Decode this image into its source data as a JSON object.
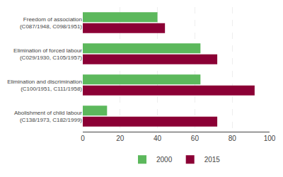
{
  "chart_data": {
    "type": "bar",
    "orientation": "horizontal",
    "categories": [
      "Freedom of association\n(C087/1948, C098/1951)",
      "Elimination of forced labour\n(C029/1930, C105/1957)",
      "Elimination and discrimination\n(C100/1951, C111/1958)",
      "Abolishment of child labour\n(C138/1973, C182/1999)"
    ],
    "series": [
      {
        "name": "2000",
        "color": "#5cb85c",
        "values": [
          40,
          63,
          63,
          13
        ]
      },
      {
        "name": "2015",
        "color": "#8b0035",
        "values": [
          44,
          72,
          92,
          72
        ]
      }
    ],
    "xlim": [
      0,
      100
    ],
    "xticks": [
      0,
      20,
      40,
      60,
      80,
      100
    ],
    "grid": true,
    "legend": "bottom"
  }
}
